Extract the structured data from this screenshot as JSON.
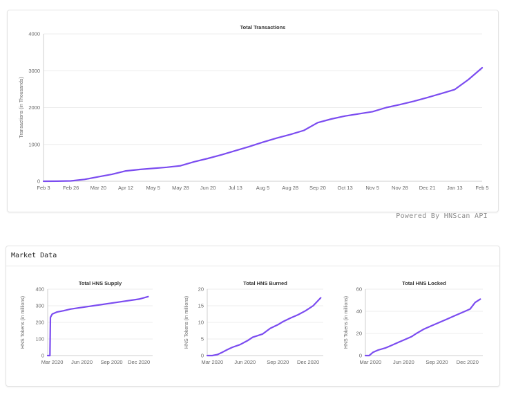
{
  "footer": {
    "powered_by": "Powered By HNScan API"
  },
  "market": {
    "section_title": "Market Data"
  },
  "colors": {
    "line": "#7b4cf0"
  },
  "chart_data": [
    {
      "id": "total-transactions",
      "type": "line",
      "title": "Total Transactions",
      "ylabel": "Transactions (in Thousands)",
      "ylim": [
        0,
        4000
      ],
      "yticks": [
        0,
        1000,
        2000,
        3000,
        4000
      ],
      "xlabels": [
        "Feb 3",
        "Feb 26",
        "Mar 20",
        "Apr 12",
        "May 5",
        "May 28",
        "Jun 20",
        "Jul 13",
        "Aug 5",
        "Aug 28",
        "Sep 20",
        "Oct 13",
        "Nov 5",
        "Nov 28",
        "Dec 21",
        "Jan 13",
        "Feb 5"
      ],
      "x": [
        0,
        0.5,
        1,
        1.5,
        2,
        2.5,
        3,
        3.5,
        4,
        4.5,
        5,
        5.5,
        6,
        6.5,
        7,
        7.5,
        8,
        8.5,
        9,
        9.5,
        10,
        10.5,
        11,
        11.5,
        12,
        12.5,
        13,
        13.5,
        14,
        14.5,
        15,
        15.5,
        16
      ],
      "values": [
        0,
        2,
        10,
        50,
        120,
        190,
        280,
        320,
        350,
        380,
        420,
        530,
        620,
        720,
        830,
        940,
        1060,
        1170,
        1270,
        1380,
        1590,
        1690,
        1770,
        1830,
        1890,
        2000,
        2080,
        2170,
        2270,
        2380,
        2490,
        2760,
        3080
      ],
      "grid": true,
      "legend": "none"
    },
    {
      "id": "total-hns-supply",
      "type": "line",
      "title": "Total HNS Supply",
      "ylabel": "HNS Tokens (in millions)",
      "ylim": [
        0,
        400
      ],
      "yticks": [
        0,
        100,
        200,
        300,
        400
      ],
      "xlabels": [
        "Mar 2020",
        "Jun 2020",
        "Sep 2020",
        "Dec 2020"
      ],
      "x": [
        0,
        0.05,
        0.1,
        0.12,
        0.2,
        0.4,
        0.7,
        1.0,
        2.0,
        3.0,
        4.0,
        4.4
      ],
      "values": [
        0,
        0,
        0,
        230,
        250,
        262,
        270,
        280,
        300,
        320,
        340,
        355
      ],
      "grid": true,
      "legend": "none"
    },
    {
      "id": "total-hns-burned",
      "type": "line",
      "title": "Total HNS Burned",
      "ylabel": "HNS Tokens (in millions)",
      "ylim": [
        0,
        20
      ],
      "yticks": [
        0,
        5,
        10,
        15,
        20
      ],
      "xlabels": [
        "Mar 2020",
        "Jun 2020",
        "Sep 2020",
        "Dec 2020"
      ],
      "x": [
        0,
        0.2,
        0.4,
        0.6,
        0.8,
        1.0,
        1.3,
        1.6,
        1.8,
        2.0,
        2.2,
        2.5,
        2.8,
        3.0,
        3.3,
        3.6,
        3.9,
        4.2,
        4.5
      ],
      "values": [
        0,
        0,
        0.3,
        1.0,
        1.8,
        2.5,
        3.3,
        4.5,
        5.5,
        6.0,
        6.5,
        8.2,
        9.3,
        10.2,
        11.3,
        12.3,
        13.5,
        15.0,
        17.4
      ],
      "grid": true,
      "legend": "none"
    },
    {
      "id": "total-hns-locked",
      "type": "line",
      "title": "Total HNS Locked",
      "ylabel": "HNS Tokens (in millions)",
      "ylim": [
        0,
        60
      ],
      "yticks": [
        0,
        20,
        40,
        60
      ],
      "xlabels": [
        "Mar 2020",
        "Jun 2020",
        "Sep 2020",
        "Dec 2020"
      ],
      "x": [
        0,
        0.15,
        0.3,
        0.5,
        0.8,
        1.0,
        1.3,
        1.6,
        1.8,
        2.0,
        2.3,
        2.6,
        2.9,
        3.2,
        3.5,
        3.8,
        4.1,
        4.3,
        4.5
      ],
      "values": [
        0,
        0,
        3,
        5,
        7,
        9,
        12,
        15,
        17,
        20,
        24,
        27,
        30,
        33,
        36,
        39,
        42,
        48,
        51
      ],
      "grid": true,
      "legend": "none"
    }
  ]
}
